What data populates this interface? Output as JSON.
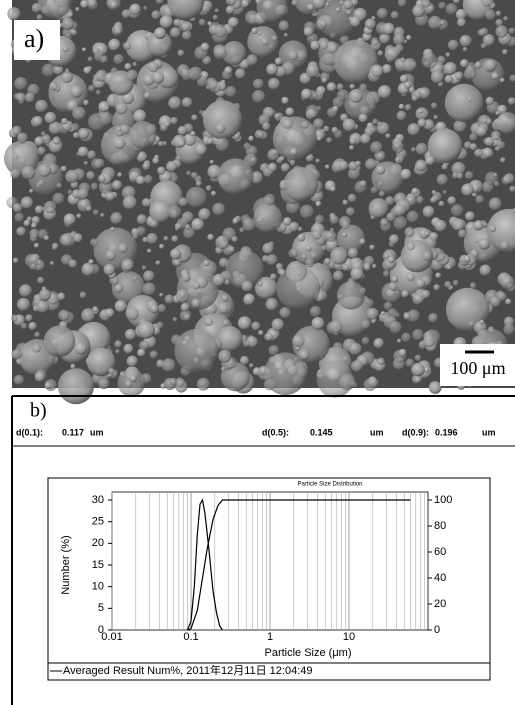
{
  "panel_a": {
    "label": "a)",
    "scale_bar": "100 μm"
  },
  "panel_b": {
    "label": "b)",
    "stats": [
      {
        "label": "d(0.1):",
        "value": "0.117",
        "unit": "um"
      },
      {
        "label": "d(0.5):",
        "value": "0.145",
        "unit": "um"
      },
      {
        "label": "d(0.9):",
        "value": "0.196",
        "unit": "um"
      }
    ]
  },
  "chart_data": {
    "type": "line",
    "title": "Particle Size Distribution",
    "x_label": "Particle Size (μm)",
    "y_label": "Number (%)",
    "legend": "Averaged Result Num%, 2011年12月11日 12:04:49",
    "log_x": true,
    "grid": true,
    "xlim": [
      0.01,
      100
    ],
    "xticks": [
      0.01,
      0.1,
      1,
      10
    ],
    "x_minor_ticks": [
      0.02,
      0.03,
      0.04,
      0.05,
      0.06,
      0.07,
      0.08,
      0.09,
      0.2,
      0.3,
      0.4,
      0.5,
      0.6,
      0.7,
      0.8,
      0.9,
      2,
      3,
      4,
      5,
      6,
      7,
      8,
      9,
      20,
      30,
      40,
      50,
      60,
      70,
      80,
      90
    ],
    "ylim": [
      0,
      30
    ],
    "yticks": [
      0,
      5,
      10,
      15,
      20,
      25,
      30
    ],
    "y2lim": [
      0,
      100
    ],
    "y2ticks": [
      0,
      20,
      40,
      60,
      80,
      100
    ],
    "series": [
      {
        "color": "#000000",
        "x": [
          0.09,
          0.1,
          0.11,
          0.12,
          0.13,
          0.14,
          0.15,
          0.17,
          0.19,
          0.21,
          0.23,
          0.25
        ],
        "values": [
          0,
          2,
          10,
          22,
          29,
          30,
          27,
          18,
          9,
          4,
          1,
          0
        ]
      },
      {
        "color": "#000000",
        "axis": "y2",
        "x": [
          0.09,
          0.1,
          0.12,
          0.14,
          0.16,
          0.19,
          0.22,
          0.25,
          0.3,
          60
        ],
        "values": [
          0,
          1,
          15,
          40,
          62,
          85,
          96,
          100,
          100,
          100
        ]
      }
    ]
  }
}
